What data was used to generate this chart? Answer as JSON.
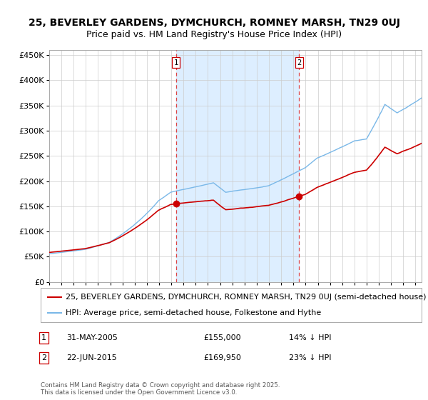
{
  "title1": "25, BEVERLEY GARDENS, DYMCHURCH, ROMNEY MARSH, TN29 0UJ",
  "title2": "Price paid vs. HM Land Registry's House Price Index (HPI)",
  "ylim": [
    0,
    460000
  ],
  "yticks": [
    0,
    50000,
    100000,
    150000,
    200000,
    250000,
    300000,
    350000,
    400000,
    450000
  ],
  "ytick_labels": [
    "£0",
    "£50K",
    "£100K",
    "£150K",
    "£200K",
    "£250K",
    "£300K",
    "£350K",
    "£400K",
    "£450K"
  ],
  "transaction1": {
    "date_num": 2005.38,
    "price": 155000,
    "label": "1",
    "date_str": "31-MAY-2005",
    "price_str": "£155,000",
    "hpi_str": "14% ↓ HPI"
  },
  "transaction2": {
    "date_num": 2015.47,
    "price": 169950,
    "label": "2",
    "date_str": "22-JUN-2015",
    "price_str": "£169,950",
    "hpi_str": "23% ↓ HPI"
  },
  "hpi_color": "#7ab8e8",
  "price_color": "#cc0000",
  "shade_color": "#ddeeff",
  "grid_color": "#cccccc",
  "legend_label1": "25, BEVERLEY GARDENS, DYMCHURCH, ROMNEY MARSH, TN29 0UJ (semi-detached house)",
  "legend_label2": "HPI: Average price, semi-detached house, Folkestone and Hythe",
  "footnote": "Contains HM Land Registry data © Crown copyright and database right 2025.\nThis data is licensed under the Open Government Licence v3.0.",
  "title1_fontsize": 10,
  "title2_fontsize": 9,
  "axis_fontsize": 8,
  "legend_fontsize": 8
}
